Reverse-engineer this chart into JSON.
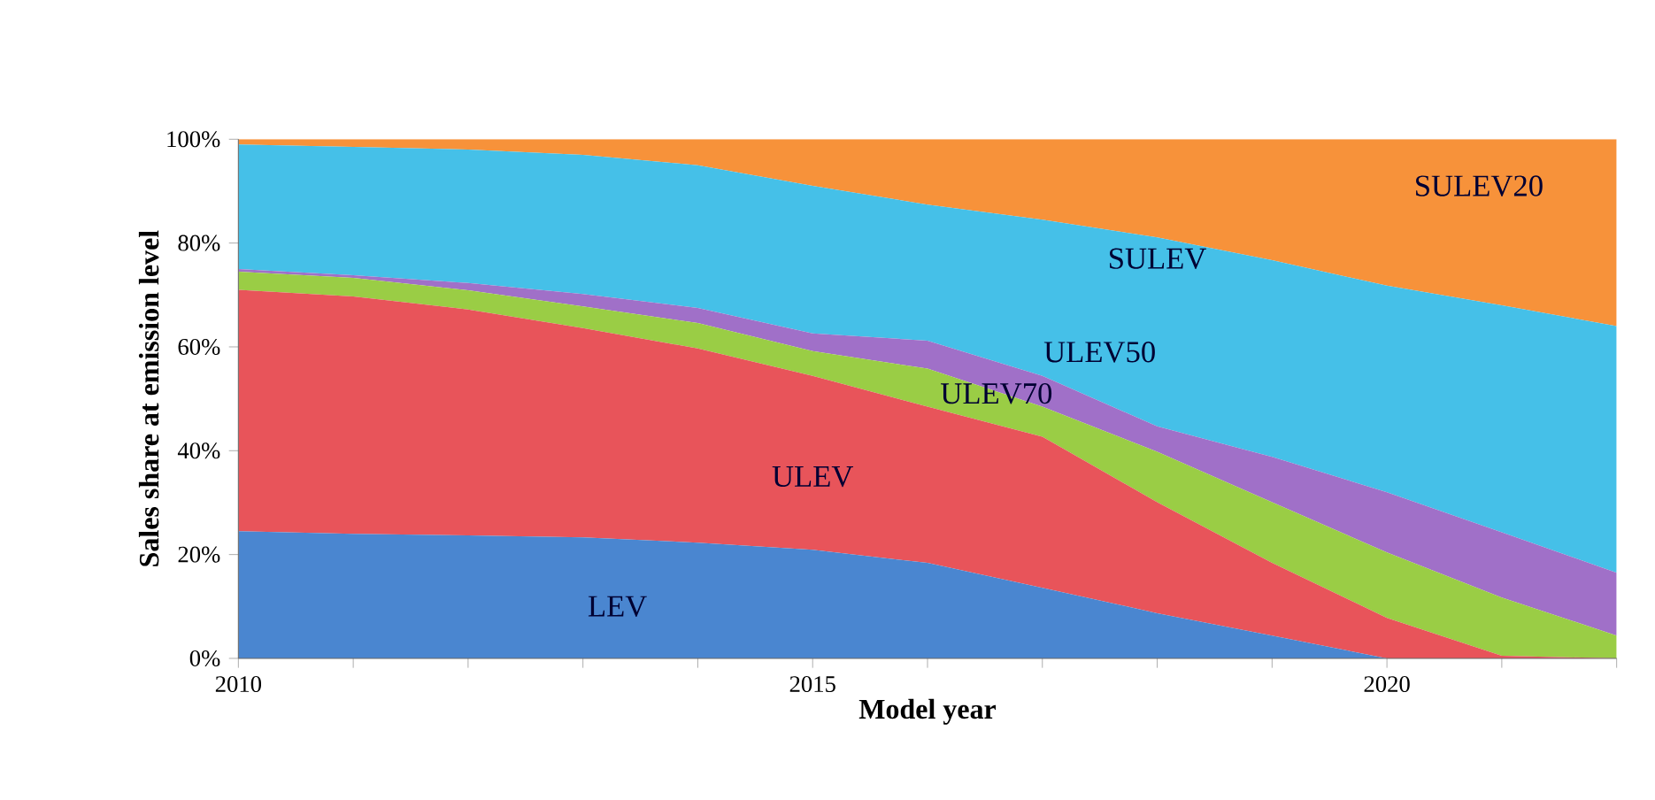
{
  "chart_data": {
    "type": "area",
    "stacked": true,
    "xlabel": "Model year",
    "ylabel": "Sales share at emission level",
    "x": [
      2010,
      2011,
      2012,
      2013,
      2014,
      2015,
      2016,
      2017,
      2018,
      2019,
      2020,
      2021,
      2022
    ],
    "series": [
      {
        "name": "LEV",
        "color": "#4a86d0",
        "values": [
          24.5,
          24,
          23.7,
          23.3,
          22.3,
          20.9,
          18.4,
          13.6,
          8.7,
          4.4,
          0,
          0,
          0
        ]
      },
      {
        "name": "ULEV",
        "color": "#e8545a",
        "values": [
          46.5,
          45.7,
          43.5,
          40.3,
          37.4,
          33.5,
          30.1,
          29.1,
          21.4,
          14,
          7.8,
          0.5,
          0
        ]
      },
      {
        "name": "ULEV70",
        "color": "#9acd45",
        "values": [
          3.5,
          3.6,
          3.7,
          4.2,
          4.9,
          4.8,
          7.3,
          5.8,
          9.7,
          11.7,
          12.6,
          11.2,
          4.4
        ]
      },
      {
        "name": "ULEV50",
        "color": "#a070c8",
        "values": [
          0.5,
          0.5,
          1.4,
          2.4,
          2.9,
          3.4,
          5.4,
          5.9,
          4.9,
          8.7,
          11.6,
          12.6,
          12.1
        ]
      },
      {
        "name": "SULEV",
        "color": "#45c0e8",
        "values": [
          24,
          24.7,
          25.7,
          26.8,
          27.5,
          28.4,
          26.2,
          30.1,
          36.4,
          37.9,
          39.8,
          43.7,
          47.5
        ]
      },
      {
        "name": "SULEV20",
        "color": "#f7923a",
        "values": [
          1,
          1.5,
          2,
          3,
          5,
          9,
          12.6,
          15.5,
          18.9,
          23.3,
          28.2,
          32,
          36
        ]
      }
    ],
    "xlim": [
      2010,
      2022
    ],
    "xticks": [
      2010,
      {
        "value": 2011,
        "label": null
      },
      {
        "value": 2012,
        "label": null
      },
      {
        "value": 2013,
        "label": null
      },
      {
        "value": 2014,
        "label": null
      },
      2015,
      {
        "value": 2016,
        "label": null
      },
      {
        "value": 2017,
        "label": null
      },
      {
        "value": 2018,
        "label": null
      },
      {
        "value": 2019,
        "label": null
      },
      2020,
      {
        "value": 2021,
        "label": null
      },
      {
        "value": 2022,
        "label": null
      }
    ],
    "ylim": [
      0,
      100
    ],
    "yticks": [
      {
        "value": 0,
        "label": "0%"
      },
      {
        "value": 20,
        "label": "20%"
      },
      {
        "value": 40,
        "label": "40%"
      },
      {
        "value": 60,
        "label": "60%"
      },
      {
        "value": 80,
        "label": "80%"
      },
      {
        "value": 100,
        "label": "100%"
      }
    ],
    "grid": false
  }
}
